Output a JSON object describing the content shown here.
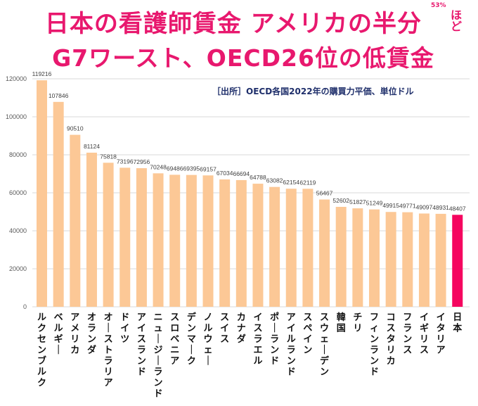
{
  "header": {
    "title_line1": "日本の看護師賃金 アメリカの半分",
    "title_superscript": "53%",
    "title_suffix": "ほど",
    "title_line2": "G7ワースト、OECD26位の低賃金",
    "source_note": "［出所］OECD各国2022年の購買力平価、単位ドル"
  },
  "colors": {
    "title": "#e8186e",
    "bar_default": "#fcc896",
    "bar_highlight": "#f5055f",
    "source_text": "#1f2f6b",
    "grid": "#d9d9d9"
  },
  "chart_data": {
    "type": "bar",
    "title": "日本の看護師賃金 アメリカの半分ほど G7ワースト、OECD26位の低賃金",
    "xlabel": "",
    "ylabel": "",
    "ylim": [
      0,
      120000
    ],
    "yticks": [
      0,
      20000,
      40000,
      60000,
      80000,
      100000,
      120000
    ],
    "grid": true,
    "legend": "none",
    "highlight": "日本",
    "categories": [
      "ルクセンブルク",
      "ベルギー",
      "アメリカ",
      "オランダ",
      "オーストラリア",
      "ドイツ",
      "アイスランド",
      "ニュージーランド",
      "スロベニア",
      "デンマーク",
      "ノルウェー",
      "スイス",
      "カナダ",
      "イスラエル",
      "ポーランド",
      "アイルランド",
      "スペイン",
      "スウェーデン",
      "韓国",
      "チリ",
      "フィンランド",
      "コスタリカ",
      "フランス",
      "イギリス",
      "イタリア",
      "日本"
    ],
    "values": [
      119216,
      107846,
      90510,
      81124,
      75818,
      73196,
      72956,
      70248,
      69486,
      69395,
      69157,
      67034,
      66694,
      64788,
      63082,
      62154,
      62119,
      56467,
      52602,
      51827,
      51249,
      49915,
      49771,
      49097,
      48931,
      48407
    ]
  }
}
